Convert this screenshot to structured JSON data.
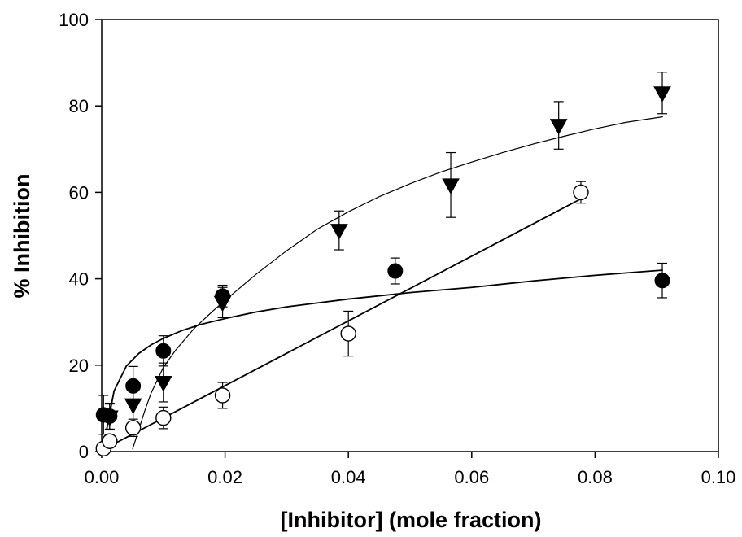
{
  "chart_data": {
    "type": "scatter",
    "title": "",
    "xlabel": "[Inhibitor] (mole fraction)",
    "ylabel": "% Inhibition",
    "xlim": [
      0,
      0.1
    ],
    "ylim": [
      0,
      100
    ],
    "xticks": [
      "0.00",
      "0.02",
      "0.04",
      "0.06",
      "0.08",
      "0.10"
    ],
    "yticks": [
      "0",
      "20",
      "40",
      "60",
      "80",
      "100"
    ],
    "grid": false,
    "legend": "none",
    "series": [
      {
        "marker": "filled-circle",
        "color": "#000000",
        "points": [
          {
            "x": 0.0003,
            "y": 8.5,
            "err": 4.5
          },
          {
            "x": 0.0013,
            "y": 8.2,
            "err": 3.0
          },
          {
            "x": 0.0051,
            "y": 15.2,
            "err": 4.5
          },
          {
            "x": 0.01,
            "y": 23.3,
            "err": 3.5
          },
          {
            "x": 0.0196,
            "y": 36.0,
            "err": 2.5
          },
          {
            "x": 0.0476,
            "y": 41.8,
            "err": 3.0
          },
          {
            "x": 0.0909,
            "y": 39.6,
            "err": 4.0
          }
        ],
        "fit": {
          "x": [
            0.0008,
            0.002,
            0.004,
            0.006,
            0.008,
            0.01,
            0.013,
            0.016,
            0.02,
            0.025,
            0.03,
            0.04,
            0.05,
            0.06,
            0.07,
            0.08,
            0.091
          ],
          "y": [
            5.0,
            14.0,
            19.8,
            22.7,
            24.7,
            26.2,
            28.0,
            29.4,
            30.8,
            32.3,
            33.5,
            35.3,
            36.8,
            38.0,
            39.5,
            40.8,
            42.0
          ]
        }
      },
      {
        "marker": "open-circle",
        "color": "#000000",
        "points": [
          {
            "x": 0.0003,
            "y": 0.7,
            "err": 0
          },
          {
            "x": 0.0013,
            "y": 2.4,
            "err": 0
          },
          {
            "x": 0.0051,
            "y": 5.5,
            "err": 2.0
          },
          {
            "x": 0.01,
            "y": 7.8,
            "err": 2.5
          },
          {
            "x": 0.0196,
            "y": 13.0,
            "err": 3.0
          },
          {
            "x": 0.04,
            "y": 27.3,
            "err": 5.2
          },
          {
            "x": 0.0777,
            "y": 60.0,
            "err": 2.5
          }
        ],
        "fit": {
          "x": [
            0.0003,
            0.0777
          ],
          "y": [
            0.5,
            58.5
          ]
        }
      },
      {
        "marker": "filled-triangle-down",
        "color": "#000000",
        "points": [
          {
            "x": 0.0013,
            "y": 8.0,
            "err": 3.0
          },
          {
            "x": 0.0051,
            "y": 10.8,
            "err": 5.0
          },
          {
            "x": 0.01,
            "y": 16.0,
            "err": 4.5
          },
          {
            "x": 0.0196,
            "y": 34.5,
            "err": 3.5
          },
          {
            "x": 0.0385,
            "y": 51.2,
            "err": 4.5
          },
          {
            "x": 0.0566,
            "y": 61.7,
            "err": 7.5
          },
          {
            "x": 0.0741,
            "y": 75.5,
            "err": 5.5
          },
          {
            "x": 0.0909,
            "y": 83.0,
            "err": 4.8
          }
        ],
        "fit": {
          "x": [
            0.005,
            0.006,
            0.007,
            0.008,
            0.01,
            0.012,
            0.015,
            0.018,
            0.02,
            0.025,
            0.03,
            0.035,
            0.04,
            0.045,
            0.05,
            0.055,
            0.06,
            0.065,
            0.07,
            0.075,
            0.08,
            0.085,
            0.091
          ],
          "y": [
            0.5,
            5.0,
            9.5,
            13.5,
            19.5,
            23.5,
            28.5,
            32.5,
            35.0,
            41.0,
            46.5,
            51.5,
            55.5,
            59.0,
            62.0,
            64.7,
            67.0,
            69.2,
            71.2,
            73.0,
            74.7,
            76.2,
            77.5
          ]
        }
      }
    ]
  }
}
